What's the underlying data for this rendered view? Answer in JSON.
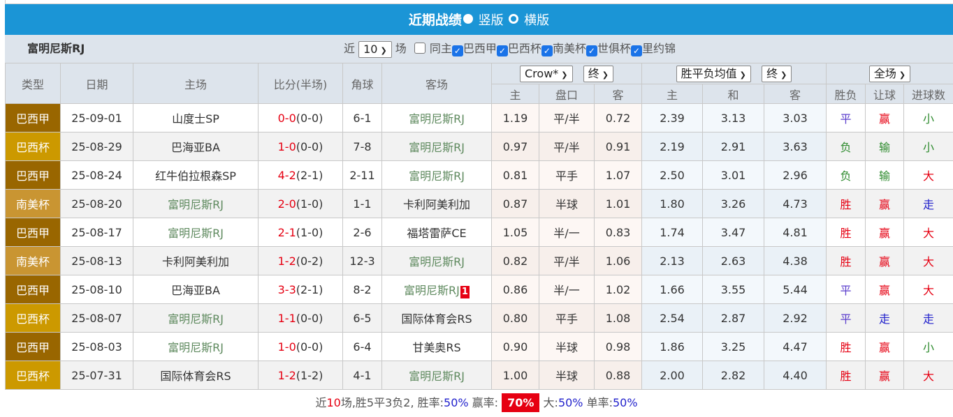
{
  "title": {
    "text": "近期战绩",
    "opt1": "竖版",
    "opt2": "横版"
  },
  "filter": {
    "team": "富明尼斯RJ",
    "near": "近",
    "count": "10",
    "unit": "场",
    "same_home": "同主",
    "leagues": [
      "巴西甲",
      "巴西杯",
      "南美杯",
      "世俱杯",
      "里约锦"
    ]
  },
  "header": {
    "type": "类型",
    "date": "日期",
    "home": "主场",
    "score": "比分(半场)",
    "corner": "角球",
    "away": "客场",
    "ah_company": "Crow*",
    "ah_time": "终",
    "eu_company": "胜平负均值",
    "eu_time": "终",
    "period": "全场",
    "sub": [
      "主",
      "盘口",
      "客",
      "主",
      "和",
      "客",
      "胜负",
      "让球",
      "进球数"
    ]
  },
  "colors": {
    "巴西甲": "#996600",
    "巴西杯": "#cc9900",
    "南美杯": "#c99532"
  },
  "rows": [
    {
      "type": "巴西甲",
      "date": "25-09-01",
      "home": "山度士SP",
      "score": "0-0",
      "half": "(0-0)",
      "corner": "6-1",
      "away": "富明尼斯RJ",
      "ah_h": "1.19",
      "ah": "平/半",
      "ah_a": "0.72",
      "eu_h": "2.39",
      "eu_d": "3.13",
      "eu_a": "3.03",
      "res": "平",
      "ahr": "赢",
      "ou": "小"
    },
    {
      "type": "巴西杯",
      "date": "25-08-29",
      "home": "巴海亚BA",
      "score": "1-0",
      "half": "(0-0)",
      "corner": "7-8",
      "away": "富明尼斯RJ",
      "ah_h": "0.97",
      "ah": "平/半",
      "ah_a": "0.91",
      "eu_h": "2.19",
      "eu_d": "2.91",
      "eu_a": "3.63",
      "res": "负",
      "ahr": "输",
      "ou": "小"
    },
    {
      "type": "巴西甲",
      "date": "25-08-24",
      "home": "红牛伯拉根森SP",
      "score": "4-2",
      "half": "(2-1)",
      "corner": "2-11",
      "away": "富明尼斯RJ",
      "ah_h": "0.81",
      "ah": "平手",
      "ah_a": "1.07",
      "eu_h": "2.50",
      "eu_d": "3.01",
      "eu_a": "2.96",
      "res": "负",
      "ahr": "输",
      "ou": "大"
    },
    {
      "type": "南美杯",
      "date": "25-08-20",
      "home": "富明尼斯RJ",
      "score": "2-0",
      "half": "(1-0)",
      "corner": "1-1",
      "away": "卡利阿美利加",
      "ah_h": "0.87",
      "ah": "半球",
      "ah_a": "1.01",
      "eu_h": "1.80",
      "eu_d": "3.26",
      "eu_a": "4.73",
      "res": "胜",
      "ahr": "赢",
      "ou": "走"
    },
    {
      "type": "巴西甲",
      "date": "25-08-17",
      "home": "富明尼斯RJ",
      "score": "2-1",
      "half": "(1-0)",
      "corner": "2-6",
      "away": "福塔雷萨CE",
      "ah_h": "1.05",
      "ah": "半/一",
      "ah_a": "0.83",
      "eu_h": "1.74",
      "eu_d": "3.47",
      "eu_a": "4.81",
      "res": "胜",
      "ahr": "赢",
      "ou": "大"
    },
    {
      "type": "南美杯",
      "date": "25-08-13",
      "home": "卡利阿美利加",
      "score": "1-2",
      "half": "(0-2)",
      "corner": "12-3",
      "away": "富明尼斯RJ",
      "ah_h": "0.82",
      "ah": "平/半",
      "ah_a": "1.06",
      "eu_h": "2.13",
      "eu_d": "2.63",
      "eu_a": "4.38",
      "res": "胜",
      "ahr": "赢",
      "ou": "大"
    },
    {
      "type": "巴西甲",
      "date": "25-08-10",
      "home": "巴海亚BA",
      "score": "3-3",
      "half": "(2-1)",
      "corner": "8-2",
      "away": "富明尼斯RJ",
      "red_card": "1",
      "ah_h": "0.86",
      "ah": "半/一",
      "ah_a": "1.02",
      "eu_h": "1.66",
      "eu_d": "3.55",
      "eu_a": "5.44",
      "res": "平",
      "ahr": "赢",
      "ou": "大"
    },
    {
      "type": "巴西杯",
      "date": "25-08-07",
      "home": "富明尼斯RJ",
      "score": "1-1",
      "half": "(0-0)",
      "corner": "6-5",
      "away": "国际体育会RS",
      "ah_h": "0.80",
      "ah": "平手",
      "ah_a": "1.08",
      "eu_h": "2.54",
      "eu_d": "2.87",
      "eu_a": "2.92",
      "res": "平",
      "ahr": "走",
      "ou": "走"
    },
    {
      "type": "巴西甲",
      "date": "25-08-03",
      "home": "富明尼斯RJ",
      "score": "1-0",
      "half": "(0-0)",
      "corner": "6-4",
      "away": "甘美奥RS",
      "ah_h": "0.90",
      "ah": "半球",
      "ah_a": "0.98",
      "eu_h": "1.86",
      "eu_d": "3.25",
      "eu_a": "4.47",
      "res": "胜",
      "ahr": "赢",
      "ou": "小"
    },
    {
      "type": "巴西杯",
      "date": "25-07-31",
      "home": "国际体育会RS",
      "score": "1-2",
      "half": "(1-2)",
      "corner": "4-1",
      "away": "富明尼斯RJ",
      "ah_h": "1.00",
      "ah": "半球",
      "ah_a": "0.88",
      "eu_h": "2.00",
      "eu_d": "2.82",
      "eu_a": "4.40",
      "res": "胜",
      "ahr": "赢",
      "ou": "大"
    }
  ],
  "footer": {
    "p1": "近",
    "n": "10",
    "p2": "场,胜5平3负2, 胜率:",
    "win_rate": "50%",
    "p3": " 赢率:",
    "ah_rate": "70%",
    "p4": " 大:",
    "over_rate": "50%",
    "p5": " 单率:",
    "odd_rate": "50%"
  }
}
